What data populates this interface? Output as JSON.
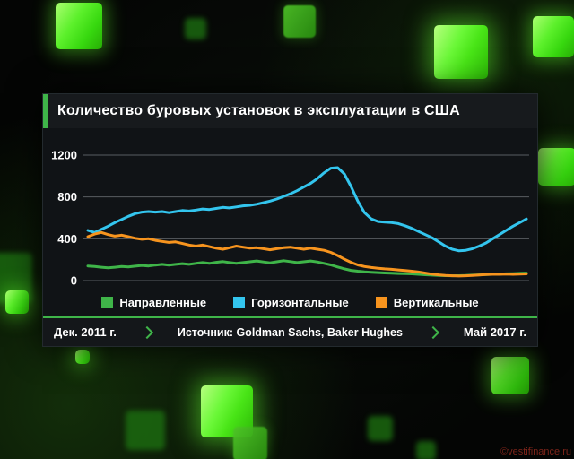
{
  "watermark": "©vestifinance.ru",
  "colors": {
    "accent_green": "#3fb549",
    "cube_green": "#55ef33",
    "panel_background": "#101316",
    "gridline_gray": "#585d61"
  },
  "panel": {
    "footer": {
      "start_date": "Дек. 2011 г.",
      "source_label": "Источник: Goldman Sachs, Baker Hughes",
      "end_date": "Май 2017 г."
    }
  },
  "icons": {
    "chevron_right": "❯"
  },
  "chart_data": {
    "type": "line",
    "title": "Количество буровых установок в эксплуатации в США",
    "xlabel": "",
    "ylabel": "",
    "x_range": [
      "Дек. 2011 г.",
      "Май 2017 г."
    ],
    "x_unit": "months",
    "y_ticks": [
      0,
      400,
      800,
      1200
    ],
    "ylim": [
      0,
      1200
    ],
    "grid": true,
    "legend_position": "bottom",
    "source": "Источник: Goldman Sachs, Baker Hughes",
    "series": [
      {
        "name": "Направленные",
        "color": "#3fb549",
        "values": [
          140,
          135,
          128,
          122,
          128,
          135,
          130,
          138,
          145,
          140,
          148,
          155,
          148,
          155,
          162,
          155,
          165,
          172,
          165,
          175,
          182,
          172,
          165,
          172,
          180,
          188,
          178,
          170,
          180,
          190,
          182,
          172,
          180,
          188,
          178,
          165,
          150,
          130,
          112,
          98,
          90,
          84,
          80,
          76,
          73,
          70,
          68,
          66,
          64,
          60,
          56,
          52,
          49,
          47,
          46,
          47,
          49,
          52,
          55,
          58,
          61,
          63,
          65,
          67,
          69,
          72
        ]
      },
      {
        "name": "Горизонтальные",
        "color": "#33c5ee",
        "values": [
          480,
          460,
          490,
          520,
          555,
          585,
          615,
          640,
          655,
          660,
          655,
          660,
          650,
          660,
          670,
          665,
          675,
          685,
          680,
          690,
          700,
          695,
          705,
          715,
          720,
          730,
          745,
          760,
          780,
          805,
          830,
          860,
          895,
          930,
          975,
          1030,
          1075,
          1080,
          1020,
          900,
          760,
          650,
          590,
          565,
          560,
          555,
          545,
          525,
          500,
          470,
          440,
          410,
          370,
          330,
          300,
          285,
          290,
          305,
          330,
          360,
          400,
          440,
          480,
          520,
          555,
          590
        ]
      },
      {
        "name": "Вертикальные",
        "color": "#f7941e",
        "values": [
          420,
          445,
          460,
          440,
          425,
          435,
          420,
          405,
          395,
          400,
          385,
          375,
          365,
          370,
          355,
          340,
          330,
          340,
          325,
          310,
          300,
          315,
          330,
          320,
          310,
          315,
          305,
          295,
          305,
          315,
          320,
          310,
          300,
          310,
          300,
          290,
          270,
          240,
          205,
          175,
          150,
          135,
          125,
          118,
          112,
          108,
          102,
          96,
          90,
          82,
          72,
          62,
          55,
          50,
          46,
          44,
          46,
          50,
          54,
          57,
          60,
          60,
          62,
          60,
          62,
          64
        ]
      }
    ]
  }
}
